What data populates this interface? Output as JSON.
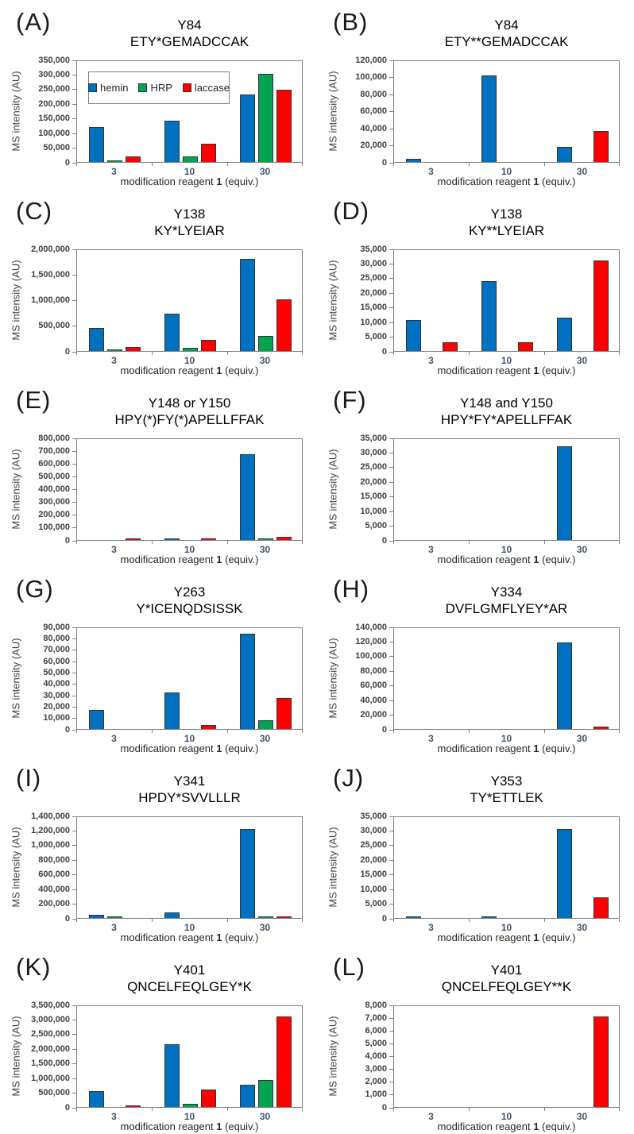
{
  "figure": {
    "ylabel": "MS intensity (AU)",
    "xlabel_prefix": "modification reagent ",
    "xlabel_bold": "1",
    "xlabel_suffix": " (equiv.)",
    "legend_labels": [
      "hemin",
      "HRP",
      "laccase"
    ],
    "series_colors": {
      "hemin": "#0070C0",
      "HRP": "#00A550",
      "laccase": "#FF0000"
    },
    "axis_line_color": "#7f7f7f",
    "bar_outline_color": "#333333"
  },
  "chart_data": [
    {
      "type": "bar",
      "label": "(A)",
      "title_line1": "Y84",
      "title_line2": "ETY*GEMADCCAK",
      "xlabel": "modification reagent 1 (equiv.)",
      "ylabel": "MS intensity (AU)",
      "categories": [
        "3",
        "10",
        "30"
      ],
      "ylim": [
        0,
        350000
      ],
      "ytick_step": 50000,
      "grid": false,
      "legend_visible": true,
      "legend_position": "inside-top-left",
      "series": [
        {
          "name": "hemin",
          "color": "#0070C0",
          "values": [
            120000,
            142000,
            230000
          ]
        },
        {
          "name": "HRP",
          "color": "#00A550",
          "values": [
            5000,
            18000,
            302000
          ]
        },
        {
          "name": "laccase",
          "color": "#FF0000",
          "values": [
            20000,
            63000,
            247000
          ]
        }
      ]
    },
    {
      "type": "bar",
      "label": "(B)",
      "title_line1": "Y84",
      "title_line2": "ETY**GEMADCCAK",
      "xlabel": "modification reagent 1 (equiv.)",
      "ylabel": "MS intensity (AU)",
      "categories": [
        "3",
        "10",
        "30"
      ],
      "ylim": [
        0,
        120000
      ],
      "ytick_step": 20000,
      "grid": false,
      "legend_visible": false,
      "series": [
        {
          "name": "hemin",
          "color": "#0070C0",
          "values": [
            4000,
            101000,
            18000
          ]
        },
        {
          "name": "HRP",
          "color": "#00A550",
          "values": [
            0,
            0,
            0
          ]
        },
        {
          "name": "laccase",
          "color": "#FF0000",
          "values": [
            0,
            0,
            36000
          ]
        }
      ]
    },
    {
      "type": "bar",
      "label": "(C)",
      "title_line1": "Y138",
      "title_line2": "KY*LYEIAR",
      "xlabel": "modification reagent 1 (equiv.)",
      "ylabel": "MS intensity (AU)",
      "categories": [
        "3",
        "10",
        "30"
      ],
      "ylim": [
        0,
        2000000
      ],
      "ytick_step": 500000,
      "grid": false,
      "legend_visible": false,
      "series": [
        {
          "name": "hemin",
          "color": "#0070C0",
          "values": [
            450000,
            730000,
            1800000
          ]
        },
        {
          "name": "HRP",
          "color": "#00A550",
          "values": [
            20000,
            55000,
            290000
          ]
        },
        {
          "name": "laccase",
          "color": "#FF0000",
          "values": [
            80000,
            220000,
            1010000
          ]
        }
      ]
    },
    {
      "type": "bar",
      "label": "(D)",
      "title_line1": "Y138",
      "title_line2": "KY**LYEIAR",
      "xlabel": "modification reagent 1 (equiv.)",
      "ylabel": "MS intensity (AU)",
      "categories": [
        "3",
        "10",
        "30"
      ],
      "ylim": [
        0,
        35000
      ],
      "ytick_step": 5000,
      "grid": false,
      "legend_visible": false,
      "series": [
        {
          "name": "hemin",
          "color": "#0070C0",
          "values": [
            10600,
            24000,
            11400
          ]
        },
        {
          "name": "HRP",
          "color": "#00A550",
          "values": [
            0,
            0,
            0
          ]
        },
        {
          "name": "laccase",
          "color": "#FF0000",
          "values": [
            2900,
            3100,
            31000
          ]
        }
      ]
    },
    {
      "type": "bar",
      "label": "(E)",
      "title_line1": "Y148 or Y150",
      "title_line2": "HPY(*)FY(*)APELLFFAK",
      "xlabel": "modification reagent 1 (equiv.)",
      "ylabel": "MS intensity (AU)",
      "categories": [
        "3",
        "10",
        "30"
      ],
      "ylim": [
        0,
        800000
      ],
      "ytick_step": 100000,
      "grid": false,
      "legend_visible": false,
      "series": [
        {
          "name": "hemin",
          "color": "#0070C0",
          "values": [
            0,
            5000,
            670000
          ]
        },
        {
          "name": "HRP",
          "color": "#00A550",
          "values": [
            0,
            0,
            5000
          ]
        },
        {
          "name": "laccase",
          "color": "#FF0000",
          "values": [
            5000,
            5000,
            25000
          ]
        }
      ]
    },
    {
      "type": "bar",
      "label": "(F)",
      "title_line1": "Y148 and Y150",
      "title_line2": "HPY*FY*APELLFFAK",
      "xlabel": "modification reagent 1 (equiv.)",
      "ylabel": "MS intensity (AU)",
      "categories": [
        "3",
        "10",
        "30"
      ],
      "ylim": [
        0,
        35000
      ],
      "ytick_step": 5000,
      "grid": false,
      "legend_visible": false,
      "series": [
        {
          "name": "hemin",
          "color": "#0070C0",
          "values": [
            0,
            0,
            32000
          ]
        },
        {
          "name": "HRP",
          "color": "#00A550",
          "values": [
            0,
            0,
            0
          ]
        },
        {
          "name": "laccase",
          "color": "#FF0000",
          "values": [
            0,
            0,
            0
          ]
        }
      ]
    },
    {
      "type": "bar",
      "label": "(G)",
      "title_line1": "Y263",
      "title_line2": "Y*ICENQDSISSK",
      "xlabel": "modification reagent 1 (equiv.)",
      "ylabel": "MS intensity (AU)",
      "categories": [
        "3",
        "10",
        "30"
      ],
      "ylim": [
        0,
        90000
      ],
      "ytick_step": 10000,
      "grid": false,
      "legend_visible": false,
      "series": [
        {
          "name": "hemin",
          "color": "#0070C0",
          "values": [
            17000,
            32000,
            84000
          ]
        },
        {
          "name": "HRP",
          "color": "#00A550",
          "values": [
            0,
            0,
            8000
          ]
        },
        {
          "name": "laccase",
          "color": "#FF0000",
          "values": [
            0,
            3500,
            27000
          ]
        }
      ]
    },
    {
      "type": "bar",
      "label": "(H)",
      "title_line1": "Y334",
      "title_line2": "DVFLGMFLYEY*AR",
      "xlabel": "modification reagent 1 (equiv.)",
      "ylabel": "MS intensity (AU)",
      "categories": [
        "3",
        "10",
        "30"
      ],
      "ylim": [
        0,
        140000
      ],
      "ytick_step": 20000,
      "grid": false,
      "legend_visible": false,
      "series": [
        {
          "name": "hemin",
          "color": "#0070C0",
          "values": [
            0,
            0,
            118000
          ]
        },
        {
          "name": "HRP",
          "color": "#00A550",
          "values": [
            0,
            0,
            0
          ]
        },
        {
          "name": "laccase",
          "color": "#FF0000",
          "values": [
            0,
            0,
            3000
          ]
        }
      ]
    },
    {
      "type": "bar",
      "label": "(I)",
      "title_line1": "Y341",
      "title_line2": "HPDY*SVVLLLR",
      "xlabel": "modification reagent 1 (equiv.)",
      "ylabel": "MS intensity (AU)",
      "categories": [
        "3",
        "10",
        "30"
      ],
      "ylim": [
        0,
        1400000
      ],
      "ytick_step": 200000,
      "grid": false,
      "legend_visible": false,
      "series": [
        {
          "name": "hemin",
          "color": "#0070C0",
          "values": [
            45000,
            80000,
            1220000
          ]
        },
        {
          "name": "HRP",
          "color": "#00A550",
          "values": [
            8000,
            0,
            8000
          ]
        },
        {
          "name": "laccase",
          "color": "#FF0000",
          "values": [
            0,
            0,
            8000
          ]
        }
      ]
    },
    {
      "type": "bar",
      "label": "(J)",
      "title_line1": "Y353",
      "title_line2": "TY*ETTLEK",
      "xlabel": "modification reagent 1 (equiv.)",
      "ylabel": "MS intensity (AU)",
      "categories": [
        "3",
        "10",
        "30"
      ],
      "ylim": [
        0,
        35000
      ],
      "ytick_step": 5000,
      "grid": false,
      "legend_visible": false,
      "series": [
        {
          "name": "hemin",
          "color": "#0070C0",
          "values": [
            300,
            300,
            30500
          ]
        },
        {
          "name": "HRP",
          "color": "#00A550",
          "values": [
            0,
            0,
            0
          ]
        },
        {
          "name": "laccase",
          "color": "#FF0000",
          "values": [
            0,
            0,
            7000
          ]
        }
      ]
    },
    {
      "type": "bar",
      "label": "(K)",
      "title_line1": "Y401",
      "title_line2": "QNCELFEQLGEY*K",
      "xlabel": "modification reagent 1 (equiv.)",
      "ylabel": "MS intensity (AU)",
      "categories": [
        "3",
        "10",
        "30"
      ],
      "ylim": [
        0,
        3500000
      ],
      "ytick_step": 500000,
      "grid": false,
      "legend_visible": false,
      "series": [
        {
          "name": "hemin",
          "color": "#0070C0",
          "values": [
            550000,
            2150000,
            750000
          ]
        },
        {
          "name": "HRP",
          "color": "#00A550",
          "values": [
            0,
            100000,
            930000
          ]
        },
        {
          "name": "laccase",
          "color": "#FF0000",
          "values": [
            60000,
            600000,
            3100000
          ]
        }
      ]
    },
    {
      "type": "bar",
      "label": "(L)",
      "title_line1": "Y401",
      "title_line2": "QNCELFEQLGEY**K",
      "xlabel": "modification reagent 1 (equiv.)",
      "ylabel": "MS intensity (AU)",
      "categories": [
        "3",
        "10",
        "30"
      ],
      "ylim": [
        0,
        8000
      ],
      "ytick_step": 1000,
      "grid": false,
      "legend_visible": false,
      "series": [
        {
          "name": "hemin",
          "color": "#0070C0",
          "values": [
            0,
            0,
            0
          ]
        },
        {
          "name": "HRP",
          "color": "#00A550",
          "values": [
            0,
            0,
            0
          ]
        },
        {
          "name": "laccase",
          "color": "#FF0000",
          "values": [
            0,
            0,
            7100
          ]
        }
      ]
    }
  ]
}
